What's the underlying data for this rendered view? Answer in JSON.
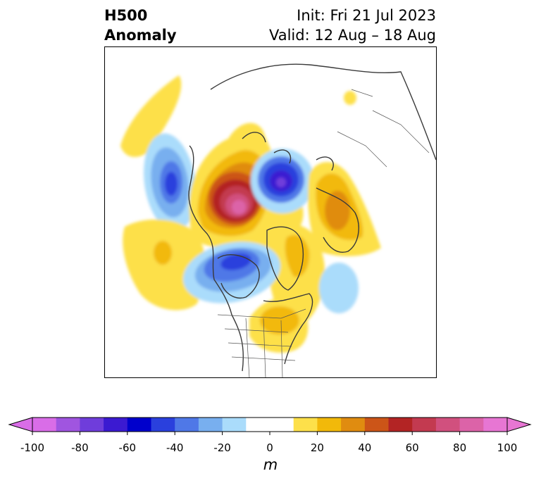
{
  "title": {
    "line1": "H500",
    "line2": "Anomaly",
    "init": "Init: Fri 21 Jul 2023",
    "valid": "Valid: 12 Aug – 18 Aug"
  },
  "colorbar": {
    "units": "m",
    "ticks": [
      "-100",
      "-80",
      "-60",
      "-40",
      "-20",
      "0",
      "20",
      "40",
      "60",
      "80",
      "100"
    ],
    "colors": [
      "#d96de7",
      "#a055e0",
      "#6f3ddb",
      "#3b1ad1",
      "#0000cc",
      "#2a40dd",
      "#4f78e7",
      "#78afef",
      "#aadcfb",
      "#ffffff",
      "#ffffff",
      "#fde04a",
      "#f2b90a",
      "#e08c10",
      "#cc5518",
      "#b32424",
      "#c33a50",
      "#d1507e",
      "#dc63a8",
      "#e776d3"
    ],
    "extend_low_color": "#d96de7",
    "extend_high_color": "#e776d3"
  },
  "map": {
    "projection": "north polar stereographic",
    "features": [
      "coastlines",
      "country borders",
      "US state borders"
    ]
  }
}
